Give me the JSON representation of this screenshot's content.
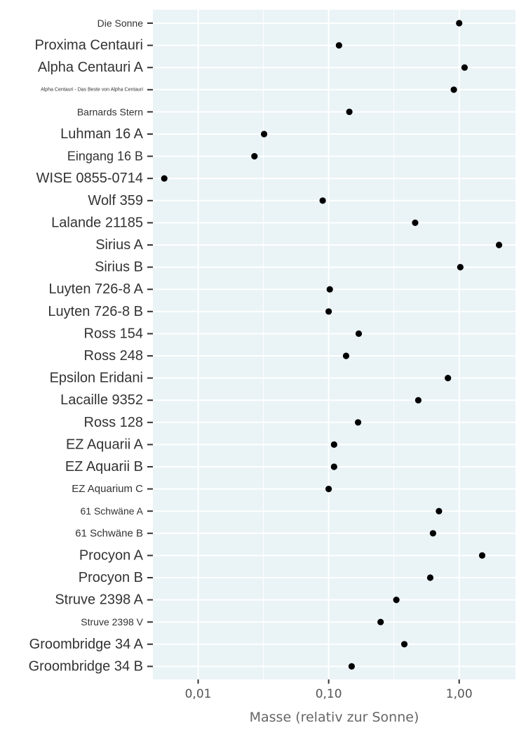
{
  "chart_data": {
    "type": "scatter",
    "title": "",
    "xlabel": "Masse (relativ zur Sonne)",
    "ylabel": "",
    "x_scale": "log10",
    "xlim": [
      0.0045,
      2.7
    ],
    "x_ticks": [
      {
        "value": 0.01,
        "label": "0,01"
      },
      {
        "value": 0.1,
        "label": "0,10"
      },
      {
        "value": 1.0,
        "label": "1,00"
      }
    ],
    "grid": true,
    "legend": "none",
    "colors": {
      "panel": "#eaf3f6",
      "grid": "#ffffff",
      "point": "#000000"
    },
    "points": [
      {
        "label": "Die Sonne",
        "x": 1.0
      },
      {
        "label": "Proxima Centauri",
        "x": 0.12
      },
      {
        "label": "Alpha Centauri A",
        "x": 1.1
      },
      {
        "label": "Alpha Centauri - Das Beste von Alpha Centauri",
        "x": 0.91
      },
      {
        "label": "Barnards Stern",
        "x": 0.144
      },
      {
        "label": "Luhman 16 A",
        "x": 0.032
      },
      {
        "label": "Eingang 16 B",
        "x": 0.027
      },
      {
        "label": "WISE 0855-0714",
        "x": 0.0055
      },
      {
        "label": "Wolf 359",
        "x": 0.09
      },
      {
        "label": "Lalande 21185",
        "x": 0.46
      },
      {
        "label": "Sirius A",
        "x": 2.02
      },
      {
        "label": "Sirius B",
        "x": 1.02
      },
      {
        "label": "Luyten 726-8 A",
        "x": 0.102
      },
      {
        "label": "Luyten 726-8 B",
        "x": 0.1
      },
      {
        "label": "Ross 154",
        "x": 0.17
      },
      {
        "label": "Ross 248",
        "x": 0.136
      },
      {
        "label": "Epsilon Eridani",
        "x": 0.82
      },
      {
        "label": "Lacaille 9352",
        "x": 0.486
      },
      {
        "label": "Ross 128",
        "x": 0.168
      },
      {
        "label": "EZ Aquarii A",
        "x": 0.11
      },
      {
        "label": "EZ Aquarii B",
        "x": 0.11
      },
      {
        "label": "EZ Aquarium C",
        "x": 0.1
      },
      {
        "label": "61 Schwäne A",
        "x": 0.7
      },
      {
        "label": "61 Schwäne B",
        "x": 0.63
      },
      {
        "label": "Procyon A",
        "x": 1.5
      },
      {
        "label": "Procyon B",
        "x": 0.6
      },
      {
        "label": "Struve 2398 A",
        "x": 0.33
      },
      {
        "label": "Struve 2398 V",
        "x": 0.25
      },
      {
        "label": "Groombridge 34 A",
        "x": 0.38
      },
      {
        "label": "Groombridge 34 B",
        "x": 0.15
      }
    ]
  }
}
